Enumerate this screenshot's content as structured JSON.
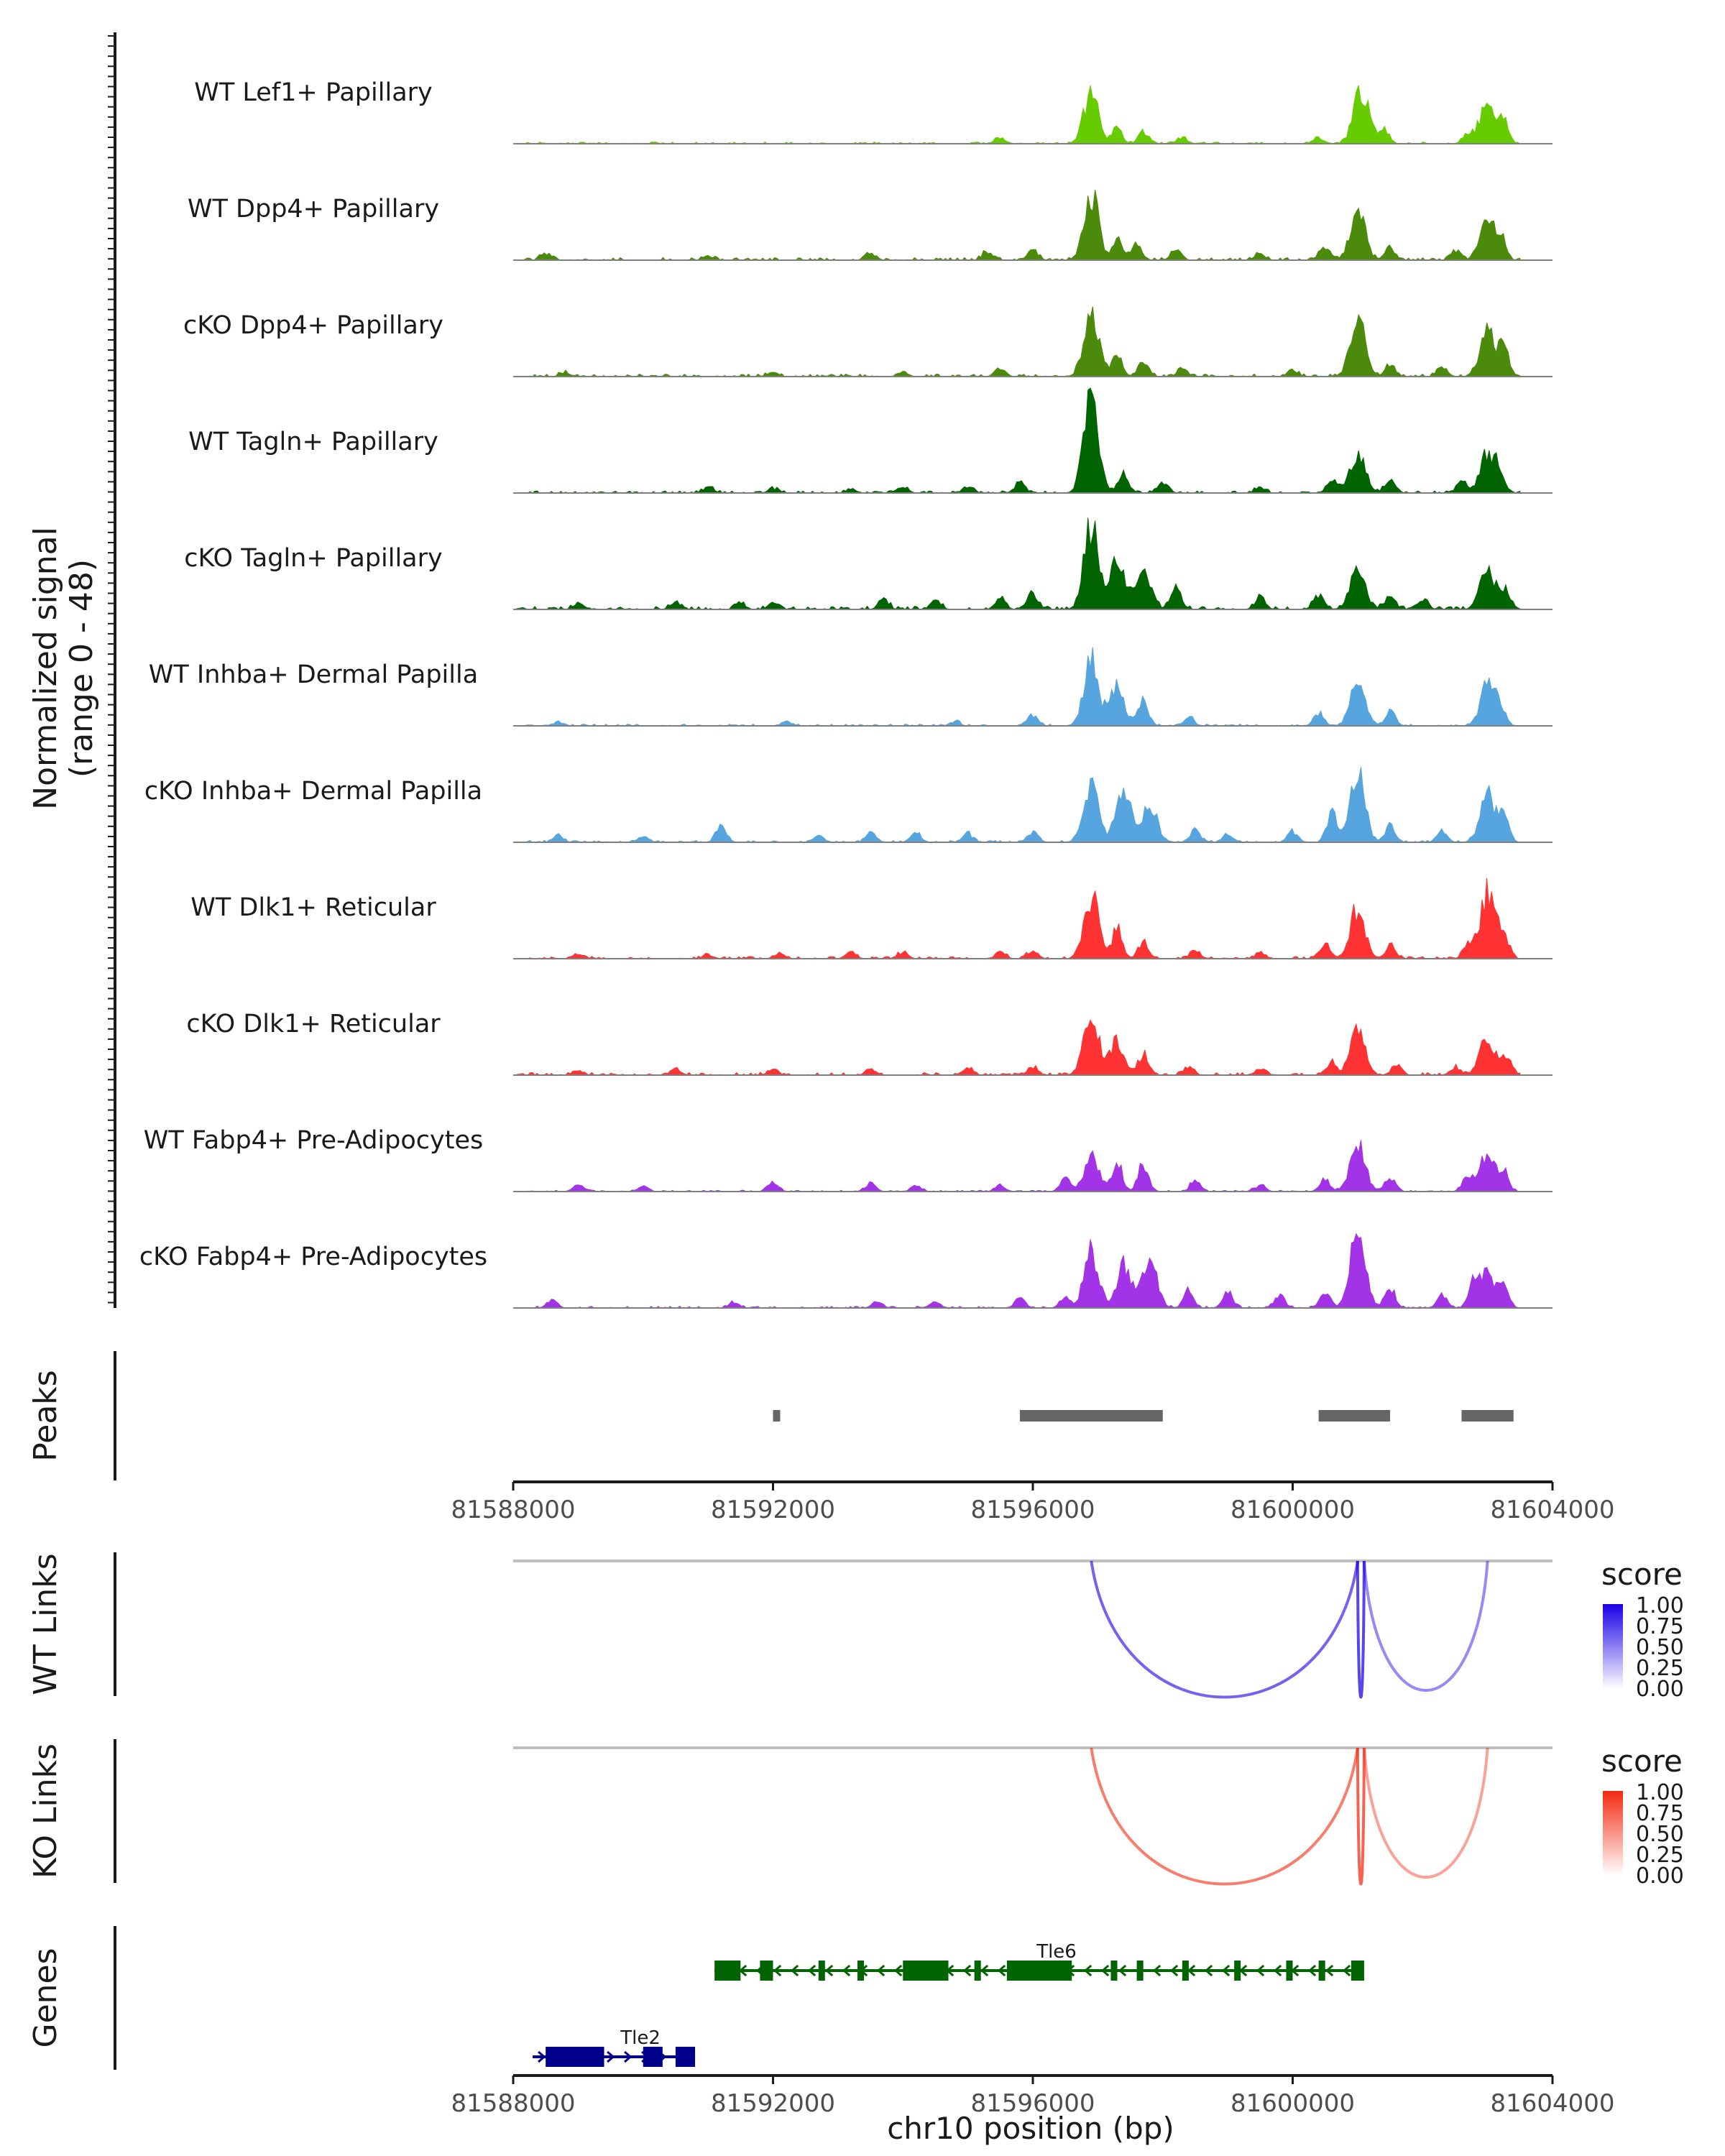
{
  "chart_data": {
    "type": "genome-coverage",
    "region": "chr10:81588000-81604000",
    "xlim": [
      81588000,
      81604000
    ],
    "x_ticks": [
      "81588000",
      "81592000",
      "81596000",
      "81600000",
      "81604000"
    ],
    "x_tick_values": [
      81588000,
      81592000,
      81596000,
      81600000,
      81604000
    ],
    "xlabel": "chr10 position (bp)",
    "coverage": {
      "ylabel": "Normalized signal",
      "ylabel_range": "(range 0 - 48)",
      "ylim": [
        0,
        48
      ],
      "tracks": [
        {
          "name": "WT Lef1+ Papillary",
          "color": "#66CC00",
          "peaks": [
            [
              81595500,
              3
            ],
            [
              81596900,
              25
            ],
            [
              81597300,
              7
            ],
            [
              81597700,
              6
            ],
            [
              81598300,
              3
            ],
            [
              81600400,
              3
            ],
            [
              81601050,
              26
            ],
            [
              81601400,
              8
            ],
            [
              81602700,
              5
            ],
            [
              81603000,
              21
            ],
            [
              81603250,
              10
            ]
          ],
          "base": 0.8
        },
        {
          "name": "WT Dpp4+ Papillary",
          "color": "#4C8A0C",
          "peaks": [
            [
              81588500,
              3
            ],
            [
              81591000,
              2
            ],
            [
              81593500,
              3
            ],
            [
              81595300,
              4
            ],
            [
              81596000,
              5
            ],
            [
              81596900,
              32
            ],
            [
              81597300,
              10
            ],
            [
              81597600,
              8
            ],
            [
              81598200,
              5
            ],
            [
              81599500,
              3
            ],
            [
              81600500,
              7
            ],
            [
              81601000,
              23
            ],
            [
              81601500,
              6
            ],
            [
              81602500,
              4
            ],
            [
              81603000,
              18
            ],
            [
              81603200,
              10
            ]
          ],
          "base": 1.2
        },
        {
          "name": "cKO Dpp4+ Papillary",
          "color": "#4C8A0C",
          "peaks": [
            [
              81588800,
              2
            ],
            [
              81592000,
              2
            ],
            [
              81594000,
              2
            ],
            [
              81595500,
              4
            ],
            [
              81596900,
              30
            ],
            [
              81597300,
              12
            ],
            [
              81597700,
              7
            ],
            [
              81598300,
              4
            ],
            [
              81600000,
              3
            ],
            [
              81601000,
              28
            ],
            [
              81601500,
              6
            ],
            [
              81602300,
              4
            ],
            [
              81603000,
              22
            ],
            [
              81603250,
              14
            ]
          ],
          "base": 1.2
        },
        {
          "name": "WT Tagln+ Papillary",
          "color": "#006400",
          "peaks": [
            [
              81591000,
              3
            ],
            [
              81592000,
              2
            ],
            [
              81593200,
              2
            ],
            [
              81594000,
              3
            ],
            [
              81595000,
              3
            ],
            [
              81595800,
              5
            ],
            [
              81596900,
              48
            ],
            [
              81597400,
              9
            ],
            [
              81598000,
              5
            ],
            [
              81599500,
              3
            ],
            [
              81600600,
              6
            ],
            [
              81601000,
              20
            ],
            [
              81601500,
              6
            ],
            [
              81602600,
              6
            ],
            [
              81603000,
              19
            ],
            [
              81603200,
              8
            ]
          ],
          "base": 1.0
        },
        {
          "name": "cKO Tagln+ Papillary",
          "color": "#006400",
          "peaks": [
            [
              81589000,
              3
            ],
            [
              81590500,
              3
            ],
            [
              81591500,
              3
            ],
            [
              81592000,
              3
            ],
            [
              81593700,
              5
            ],
            [
              81594500,
              4
            ],
            [
              81595500,
              6
            ],
            [
              81596000,
              8
            ],
            [
              81596900,
              40
            ],
            [
              81597300,
              22
            ],
            [
              81597700,
              20
            ],
            [
              81598200,
              10
            ],
            [
              81599500,
              6
            ],
            [
              81600400,
              7
            ],
            [
              81601000,
              18
            ],
            [
              81601500,
              6
            ],
            [
              81602000,
              5
            ],
            [
              81603000,
              19
            ],
            [
              81603300,
              8
            ]
          ],
          "base": 1.5
        },
        {
          "name": "WT Inhba+ Dermal Papilla",
          "color": "#56A5DE",
          "peaks": [
            [
              81588700,
              2
            ],
            [
              81592200,
              2
            ],
            [
              81594800,
              2
            ],
            [
              81596000,
              5
            ],
            [
              81596900,
              30
            ],
            [
              81597300,
              18
            ],
            [
              81597700,
              12
            ],
            [
              81598400,
              4
            ],
            [
              81600400,
              6
            ],
            [
              81601000,
              20
            ],
            [
              81601500,
              7
            ],
            [
              81603000,
              19
            ],
            [
              81603200,
              8
            ]
          ],
          "base": 0.8
        },
        {
          "name": "cKO Inhba+ Dermal Papilla",
          "color": "#56A5DE",
          "peaks": [
            [
              81588700,
              3
            ],
            [
              81590000,
              3
            ],
            [
              81591200,
              8
            ],
            [
              81592700,
              3
            ],
            [
              81593500,
              5
            ],
            [
              81594200,
              5
            ],
            [
              81595000,
              4
            ],
            [
              81596000,
              5
            ],
            [
              81596900,
              28
            ],
            [
              81597400,
              26
            ],
            [
              81597800,
              18
            ],
            [
              81598500,
              6
            ],
            [
              81599000,
              4
            ],
            [
              81600000,
              5
            ],
            [
              81600600,
              14
            ],
            [
              81601000,
              32
            ],
            [
              81601500,
              8
            ],
            [
              81602300,
              5
            ],
            [
              81603000,
              22
            ],
            [
              81603250,
              12
            ]
          ],
          "base": 0.8
        },
        {
          "name": "WT Dlk1+ Reticular",
          "color": "#FF3333",
          "peaks": [
            [
              81589000,
              2
            ],
            [
              81591000,
              2
            ],
            [
              81592100,
              3
            ],
            [
              81593200,
              3
            ],
            [
              81594000,
              3
            ],
            [
              81595500,
              3
            ],
            [
              81596000,
              4
            ],
            [
              81596900,
              30
            ],
            [
              81597300,
              15
            ],
            [
              81597700,
              8
            ],
            [
              81598500,
              4
            ],
            [
              81599500,
              3
            ],
            [
              81600500,
              8
            ],
            [
              81601000,
              24
            ],
            [
              81601500,
              6
            ],
            [
              81602700,
              6
            ],
            [
              81603000,
              31
            ],
            [
              81603250,
              12
            ]
          ],
          "base": 1.0
        },
        {
          "name": "cKO Dlk1+ Reticular",
          "color": "#FF3333",
          "peaks": [
            [
              81589000,
              2
            ],
            [
              81590500,
              3
            ],
            [
              81592000,
              3
            ],
            [
              81593500,
              3
            ],
            [
              81595000,
              3
            ],
            [
              81596000,
              4
            ],
            [
              81596900,
              29
            ],
            [
              81597300,
              16
            ],
            [
              81597700,
              10
            ],
            [
              81598400,
              4
            ],
            [
              81599500,
              3
            ],
            [
              81600600,
              6
            ],
            [
              81601000,
              22
            ],
            [
              81601600,
              5
            ],
            [
              81602500,
              4
            ],
            [
              81603000,
              18
            ],
            [
              81603300,
              9
            ]
          ],
          "base": 1.2
        },
        {
          "name": "WT Fabp4+ Pre-Adipocytes",
          "color": "#A333E6",
          "peaks": [
            [
              81589000,
              3
            ],
            [
              81590000,
              3
            ],
            [
              81592000,
              5
            ],
            [
              81593500,
              4
            ],
            [
              81594200,
              3
            ],
            [
              81595500,
              3
            ],
            [
              81596500,
              6
            ],
            [
              81596900,
              16
            ],
            [
              81597300,
              14
            ],
            [
              81597700,
              13
            ],
            [
              81598500,
              5
            ],
            [
              81599500,
              3
            ],
            [
              81600500,
              6
            ],
            [
              81601000,
              22
            ],
            [
              81601500,
              7
            ],
            [
              81602700,
              8
            ],
            [
              81603000,
              18
            ],
            [
              81603250,
              9
            ]
          ],
          "base": 0.6
        },
        {
          "name": "cKO Fabp4+ Pre-Adipocytes",
          "color": "#A333E6",
          "peaks": [
            [
              81588600,
              4
            ],
            [
              81591400,
              3
            ],
            [
              81593600,
              3
            ],
            [
              81594500,
              3
            ],
            [
              81595800,
              5
            ],
            [
              81596500,
              5
            ],
            [
              81596900,
              26
            ],
            [
              81597400,
              20
            ],
            [
              81597800,
              22
            ],
            [
              81598400,
              8
            ],
            [
              81599000,
              8
            ],
            [
              81599800,
              6
            ],
            [
              81600500,
              8
            ],
            [
              81601000,
              42
            ],
            [
              81601500,
              9
            ],
            [
              81602300,
              6
            ],
            [
              81602800,
              14
            ],
            [
              81603000,
              17
            ],
            [
              81603250,
              9
            ]
          ],
          "base": 0.8
        }
      ]
    },
    "peaks_track": {
      "label": "Peaks",
      "intervals": [
        [
          81592000,
          81592100
        ],
        [
          81595800,
          81598000
        ],
        [
          81600400,
          81601500
        ],
        [
          81602600,
          81603400
        ]
      ],
      "color": "#666666"
    },
    "links": [
      {
        "label": "WT Links",
        "legend_title": "score",
        "legend_labels": [
          "1.00",
          "0.75",
          "0.50",
          "0.25",
          "0.00"
        ],
        "legend_color": "#1A00E6",
        "arcs": [
          {
            "start": 81596900,
            "end": 81601000,
            "score": 0.6
          },
          {
            "start": 81601000,
            "end": 81601100,
            "score": 0.8
          },
          {
            "start": 81601100,
            "end": 81603000,
            "score": 0.35
          }
        ]
      },
      {
        "label": "KO Links",
        "legend_title": "score",
        "legend_labels": [
          "1.00",
          "0.75",
          "0.50",
          "0.25",
          "0.00"
        ],
        "legend_color": "#F22A10",
        "arcs": [
          {
            "start": 81596900,
            "end": 81601000,
            "score": 0.6
          },
          {
            "start": 81601000,
            "end": 81601100,
            "score": 0.8
          },
          {
            "start": 81601100,
            "end": 81603000,
            "score": 0.3
          }
        ]
      }
    ],
    "genes": {
      "label": "Genes",
      "items": [
        {
          "name": "Tle6",
          "strand": "-",
          "start": 81591100,
          "end": 81601100,
          "color": "#006400",
          "row": 0,
          "exons": [
            [
              81591100,
              81591500
            ],
            [
              81591800,
              81592000
            ],
            [
              81592700,
              81592800
            ],
            [
              81593300,
              81593400
            ],
            [
              81594000,
              81594700
            ],
            [
              81595100,
              81595200
            ],
            [
              81595600,
              81596000
            ],
            [
              81596000,
              81596600
            ],
            [
              81597200,
              81597300
            ],
            [
              81597600,
              81597700
            ],
            [
              81598300,
              81598400
            ],
            [
              81599100,
              81599200
            ],
            [
              81599900,
              81600000
            ],
            [
              81600400,
              81600500
            ],
            [
              81600900,
              81601100
            ]
          ]
        },
        {
          "name": "Tle2",
          "strand": "+",
          "start": 81588300,
          "end": 81590800,
          "color": "#00008B",
          "row": 1,
          "exons": [
            [
              81588500,
              81589400
            ],
            [
              81590000,
              81590300
            ],
            [
              81590500,
              81590800
            ]
          ]
        }
      ]
    }
  }
}
